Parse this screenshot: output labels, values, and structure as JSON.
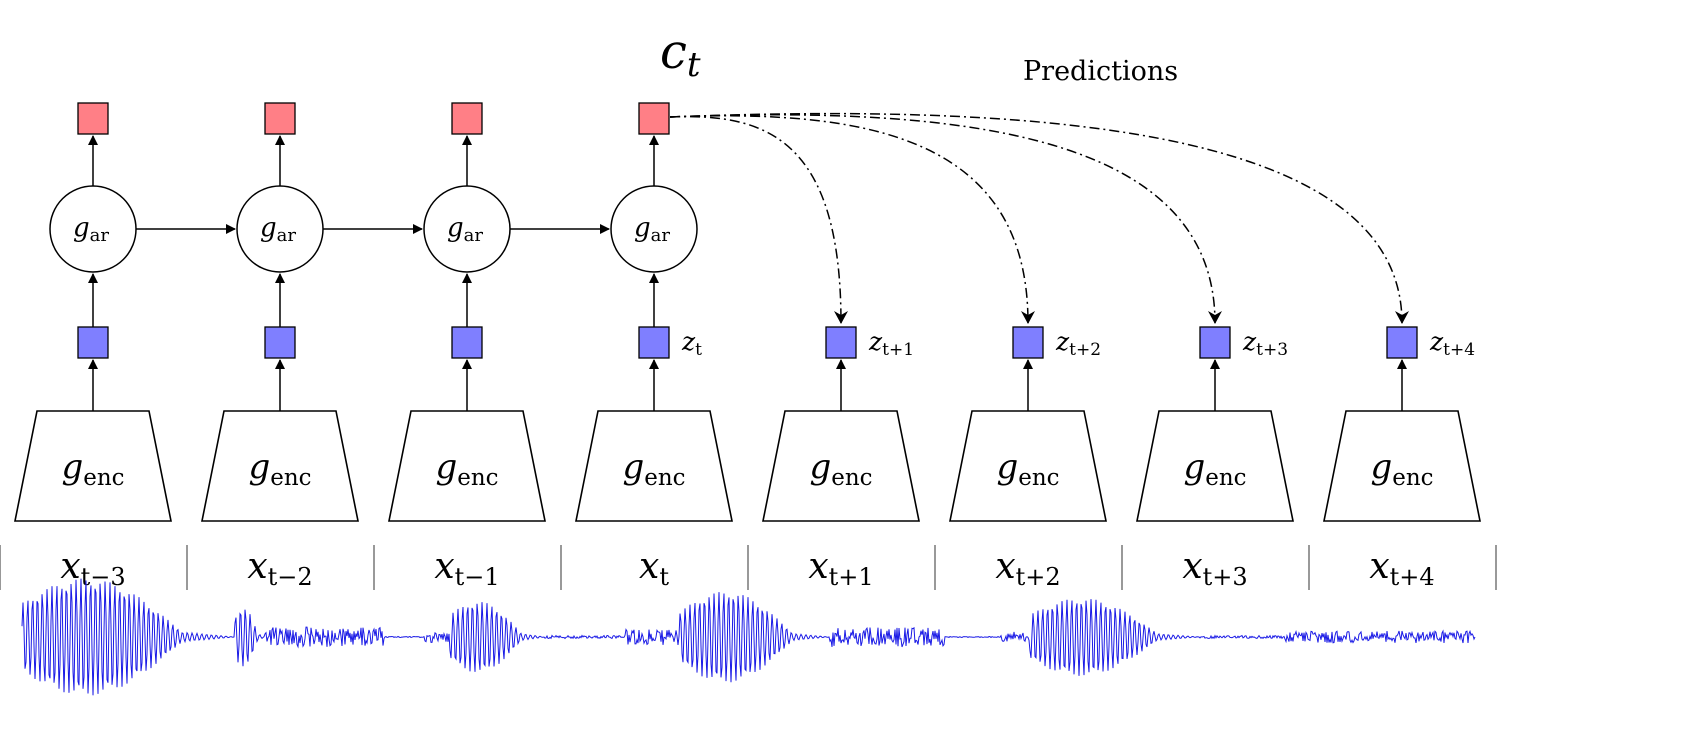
{
  "title_label": {
    "main": "c",
    "sub": "t"
  },
  "predictions_label": "Predictions",
  "colors": {
    "context": "#ff7f86",
    "latent": "#7f7fff",
    "waveform": "#1a1ae6",
    "stroke": "#000000"
  },
  "columns": [
    {
      "x": "x",
      "x_sub": "t−3",
      "z": "",
      "z_sub": "",
      "has_ar": true
    },
    {
      "x": "x",
      "x_sub": "t−2",
      "z": "",
      "z_sub": "",
      "has_ar": true
    },
    {
      "x": "x",
      "x_sub": "t−1",
      "z": "",
      "z_sub": "",
      "has_ar": true
    },
    {
      "x": "x",
      "x_sub": "t",
      "z": "z",
      "z_sub": "t",
      "has_ar": true
    },
    {
      "x": "x",
      "x_sub": "t+1",
      "z": "z",
      "z_sub": "t+1",
      "has_ar": false
    },
    {
      "x": "x",
      "x_sub": "t+2",
      "z": "z",
      "z_sub": "t+2",
      "has_ar": false
    },
    {
      "x": "x",
      "x_sub": "t+3",
      "z": "z",
      "z_sub": "t+3",
      "has_ar": false
    },
    {
      "x": "x",
      "x_sub": "t+4",
      "z": "z",
      "z_sub": "t+4",
      "has_ar": false
    }
  ],
  "encoder_label": {
    "main": "g",
    "sub": "enc"
  },
  "ar_label": {
    "main": "g",
    "sub": "ar"
  }
}
